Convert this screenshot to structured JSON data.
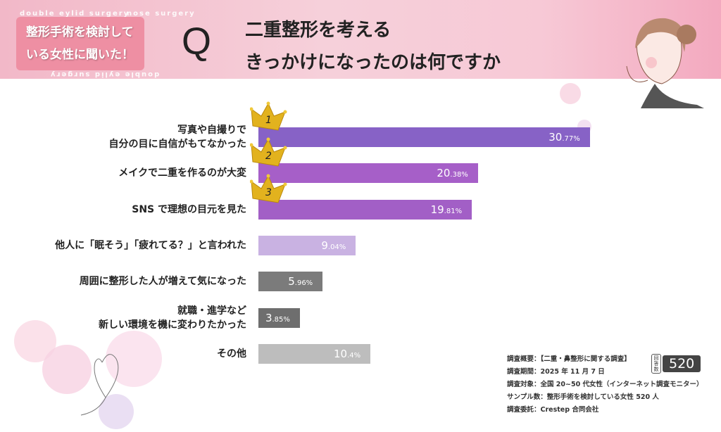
{
  "header": {
    "badge_lines": [
      "整形手術を検討して",
      "いる女性に聞いた！"
    ],
    "decor_text": [
      "double eylid surgery",
      "nose surgery"
    ],
    "q_mark": "Q",
    "question_lines": [
      "二重整形を考える",
      "きっかけになったのは何ですか"
    ]
  },
  "chart_data": {
    "type": "bar",
    "orientation": "horizontal",
    "unit": "%",
    "categories": [
      [
        "写真や自撮りで",
        "自分の目に自信がもてなかった"
      ],
      [
        "メイクで二重を作るのが大変"
      ],
      [
        "SNS で理想の目元を見た"
      ],
      [
        "他人に「眠そう」「疲れてる？」と言われた"
      ],
      [
        "周囲に整形した人が増えて気になった"
      ],
      [
        "就職・進学など",
        "新しい環境を機に変わりたかった"
      ],
      [
        "その他"
      ]
    ],
    "values": [
      30.77,
      20.38,
      19.81,
      9.04,
      5.96,
      3.85,
      10.4
    ],
    "value_labels": [
      [
        "30",
        ".77%"
      ],
      [
        "20",
        ".38%"
      ],
      [
        "19",
        ".81%"
      ],
      [
        "9",
        ".04%"
      ],
      [
        "5",
        ".96%"
      ],
      [
        "3",
        ".85%"
      ],
      [
        "10",
        ".4%"
      ]
    ],
    "bar_colors": [
      "#8762c6",
      "#a65fc8",
      "#a25fc6",
      "#c9b2e2",
      "#7b7b7b",
      "#6e6e6e",
      "#bdbdbd"
    ],
    "rank_crowns": [
      "1",
      "2",
      "3"
    ],
    "grid": false
  },
  "survey": {
    "lines": [
      "調査概要：【二重・鼻整形に関する調査】",
      "調査期間：2025 年 11 月 7 日",
      "調査対象：全国 20~50 代女性（インターネット調査モニター）",
      "サンプル数：整形手術を検討している女性 520 人",
      "調査委託：Crestep 合同会社"
    ],
    "count_tag": "回答数",
    "count": "520"
  }
}
